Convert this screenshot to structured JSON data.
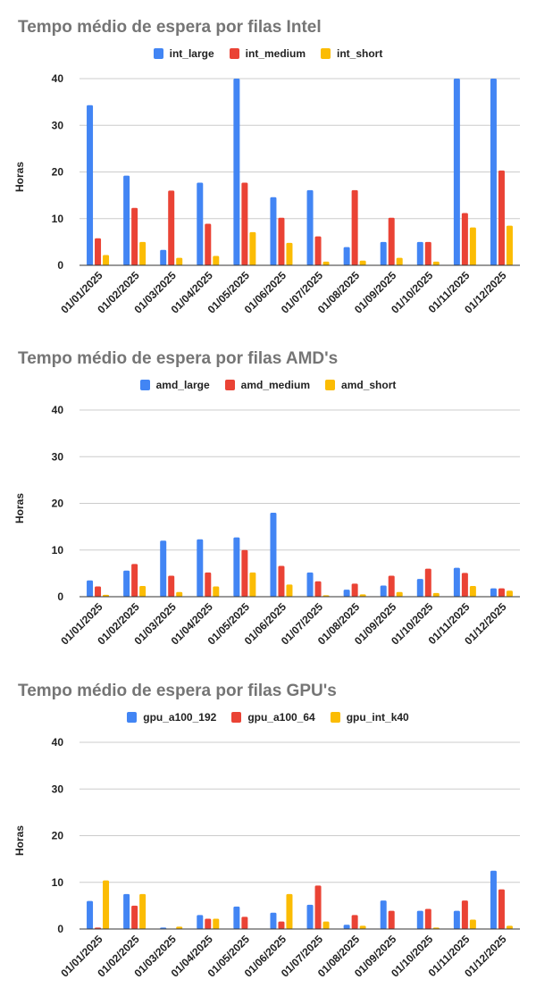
{
  "chart_data": [
    {
      "type": "bar",
      "title": "Tempo médio de espera por filas Intel",
      "xlabel": "",
      "ylabel": "Horas",
      "ylim": [
        0,
        40
      ],
      "yticks": [
        "0",
        "10",
        "20",
        "30",
        "40"
      ],
      "grid": true,
      "legend": "top-center",
      "categories": [
        "01/01/2025",
        "01/02/2025",
        "01/03/2025",
        "01/04/2025",
        "01/05/2025",
        "01/06/2025",
        "01/07/2025",
        "01/08/2025",
        "01/09/2025",
        "01/10/2025",
        "01/11/2025",
        "01/12/2025"
      ],
      "series": [
        {
          "name": "int_large",
          "color": "#4285f4",
          "values": [
            34.3,
            19.2,
            3.3,
            17.7,
            40,
            14.6,
            16.1,
            3.9,
            5.0,
            5.0,
            40,
            40
          ]
        },
        {
          "name": "int_medium",
          "color": "#ea4335",
          "values": [
            5.8,
            12.3,
            16.0,
            8.9,
            17.7,
            10.2,
            6.2,
            16.1,
            10.2,
            5.0,
            11.2,
            20.3
          ]
        },
        {
          "name": "int_short",
          "color": "#fbbc04",
          "values": [
            2.2,
            5.0,
            1.6,
            2.0,
            7.1,
            4.8,
            0.8,
            1.0,
            1.6,
            0.8,
            8.1,
            8.5
          ]
        }
      ]
    },
    {
      "type": "bar",
      "title": "Tempo médio de espera por filas AMD's",
      "xlabel": "",
      "ylabel": "Horas",
      "ylim": [
        0,
        40
      ],
      "yticks": [
        "0",
        "10",
        "20",
        "30",
        "40"
      ],
      "grid": true,
      "legend": "top-center",
      "categories": [
        "01/01/2025",
        "01/02/2025",
        "01/03/2025",
        "01/04/2025",
        "01/05/2025",
        "01/06/2025",
        "01/07/2025",
        "01/08/2025",
        "01/09/2025",
        "01/10/2025",
        "01/11/2025",
        "01/12/2025"
      ],
      "series": [
        {
          "name": "amd_large",
          "color": "#4285f4",
          "values": [
            3.5,
            5.6,
            12.0,
            12.3,
            12.7,
            18.0,
            5.2,
            1.5,
            2.4,
            3.8,
            6.2,
            1.8
          ]
        },
        {
          "name": "amd_medium",
          "color": "#ea4335",
          "values": [
            2.2,
            7.0,
            4.5,
            5.2,
            10.0,
            6.6,
            3.3,
            2.8,
            4.5,
            6.0,
            5.1,
            1.8
          ]
        },
        {
          "name": "amd_short",
          "color": "#fbbc04",
          "values": [
            0.4,
            2.3,
            1.0,
            2.2,
            5.2,
            2.6,
            0.3,
            0.5,
            1.0,
            0.8,
            2.3,
            1.3
          ]
        }
      ]
    },
    {
      "type": "bar",
      "title": "Tempo médio de espera por filas GPU's",
      "xlabel": "",
      "ylabel": "Horas",
      "ylim": [
        0,
        40
      ],
      "yticks": [
        "0",
        "10",
        "20",
        "30",
        "40"
      ],
      "grid": true,
      "legend": "top-center",
      "categories": [
        "01/01/2025",
        "01/02/2025",
        "01/03/2025",
        "01/04/2025",
        "01/05/2025",
        "01/06/2025",
        "01/07/2025",
        "01/08/2025",
        "01/09/2025",
        "01/10/2025",
        "01/11/2025",
        "01/12/2025"
      ],
      "series": [
        {
          "name": "gpu_a100_192",
          "color": "#4285f4",
          "values": [
            6.0,
            7.5,
            0.3,
            3.0,
            4.8,
            3.5,
            5.2,
            0.9,
            6.1,
            3.9,
            3.9,
            12.5
          ]
        },
        {
          "name": "gpu_a100_64",
          "color": "#ea4335",
          "values": [
            0.3,
            5.0,
            0.1,
            2.2,
            2.6,
            1.6,
            9.3,
            3.0,
            3.9,
            4.3,
            6.1,
            8.5
          ]
        },
        {
          "name": "gpu_int_k40",
          "color": "#fbbc04",
          "values": [
            10.4,
            7.5,
            0.5,
            2.2,
            0.0,
            7.5,
            1.6,
            0.7,
            0.0,
            0.3,
            2.0,
            0.7
          ]
        }
      ]
    }
  ]
}
